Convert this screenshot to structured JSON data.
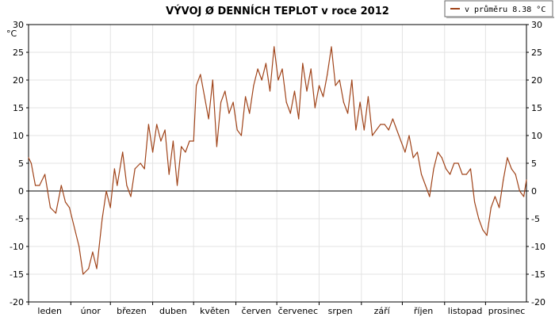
{
  "chart_data": {
    "type": "line",
    "title": "VÝVOJ Ø DENNÍCH TEPLOT v roce 2012",
    "legend": {
      "label": "v průměru 8.38 °C",
      "placement": "top-right",
      "color": "#a0441a"
    },
    "ylabel": "°C",
    "ylim": [
      -20,
      30
    ],
    "yticks": [
      "30",
      "25",
      "20",
      "15",
      "10",
      "5",
      "0",
      "-5",
      "-10",
      "-15",
      "-20"
    ],
    "grid": true,
    "months": [
      "leden",
      "únor",
      "březen",
      "duben",
      "květen",
      "červen",
      "červenec",
      "srpen",
      "září",
      "říjen",
      "listopad",
      "prosinec"
    ],
    "series": [
      {
        "color": "#a0441a",
        "x_unit": "day of year",
        "points": [
          [
            1,
            6
          ],
          [
            3,
            5
          ],
          [
            6,
            1
          ],
          [
            9,
            1
          ],
          [
            13,
            3
          ],
          [
            17,
            -3
          ],
          [
            21,
            -4
          ],
          [
            25,
            1
          ],
          [
            28,
            -2
          ],
          [
            31,
            -3
          ],
          [
            35,
            -7
          ],
          [
            38,
            -10
          ],
          [
            41,
            -15
          ],
          [
            45,
            -14
          ],
          [
            48,
            -11
          ],
          [
            51,
            -14
          ],
          [
            55,
            -5
          ],
          [
            58,
            0
          ],
          [
            61,
            -3
          ],
          [
            64,
            4
          ],
          [
            66,
            1
          ],
          [
            70,
            7
          ],
          [
            73,
            1
          ],
          [
            76,
            -1
          ],
          [
            79,
            4
          ],
          [
            83,
            5
          ],
          [
            86,
            4
          ],
          [
            89,
            12
          ],
          [
            92,
            7
          ],
          [
            95,
            12
          ],
          [
            98,
            9
          ],
          [
            101,
            11
          ],
          [
            104,
            3
          ],
          [
            107,
            9
          ],
          [
            110,
            1
          ],
          [
            113,
            8
          ],
          [
            116,
            7
          ],
          [
            119,
            9
          ],
          [
            122,
            9
          ],
          [
            124,
            19
          ],
          [
            127,
            21
          ],
          [
            130,
            17
          ],
          [
            133,
            13
          ],
          [
            136,
            20
          ],
          [
            139,
            8
          ],
          [
            142,
            16
          ],
          [
            145,
            18
          ],
          [
            148,
            14
          ],
          [
            151,
            16
          ],
          [
            154,
            11
          ],
          [
            157,
            10
          ],
          [
            160,
            17
          ],
          [
            163,
            14
          ],
          [
            166,
            19
          ],
          [
            169,
            22
          ],
          [
            172,
            20
          ],
          [
            175,
            23
          ],
          [
            178,
            18
          ],
          [
            181,
            26
          ],
          [
            184,
            20
          ],
          [
            187,
            22
          ],
          [
            190,
            16
          ],
          [
            193,
            14
          ],
          [
            196,
            18
          ],
          [
            199,
            13
          ],
          [
            202,
            23
          ],
          [
            205,
            18
          ],
          [
            208,
            22
          ],
          [
            211,
            15
          ],
          [
            214,
            19
          ],
          [
            217,
            17
          ],
          [
            220,
            21
          ],
          [
            223,
            26
          ],
          [
            226,
            19
          ],
          [
            229,
            20
          ],
          [
            232,
            16
          ],
          [
            235,
            14
          ],
          [
            238,
            20
          ],
          [
            241,
            11
          ],
          [
            244,
            16
          ],
          [
            247,
            11
          ],
          [
            250,
            17
          ],
          [
            253,
            10
          ],
          [
            256,
            11
          ],
          [
            259,
            12
          ],
          [
            262,
            12
          ],
          [
            265,
            11
          ],
          [
            268,
            13
          ],
          [
            271,
            11
          ],
          [
            274,
            9
          ],
          [
            277,
            7
          ],
          [
            280,
            10
          ],
          [
            283,
            6
          ],
          [
            286,
            7
          ],
          [
            289,
            3
          ],
          [
            292,
            1
          ],
          [
            295,
            -1
          ],
          [
            298,
            4
          ],
          [
            301,
            7
          ],
          [
            304,
            6
          ],
          [
            307,
            4
          ],
          [
            310,
            3
          ],
          [
            313,
            5
          ],
          [
            316,
            5
          ],
          [
            319,
            3
          ],
          [
            322,
            3
          ],
          [
            325,
            4
          ],
          [
            328,
            -2
          ],
          [
            331,
            -5
          ],
          [
            334,
            -7
          ],
          [
            337,
            -8
          ],
          [
            340,
            -3
          ],
          [
            343,
            -1
          ],
          [
            346,
            -3
          ],
          [
            349,
            2
          ],
          [
            352,
            6
          ],
          [
            355,
            4
          ],
          [
            358,
            3
          ],
          [
            361,
            0
          ],
          [
            364,
            -1
          ],
          [
            366,
            2
          ]
        ]
      }
    ],
    "reference_line": 0
  }
}
